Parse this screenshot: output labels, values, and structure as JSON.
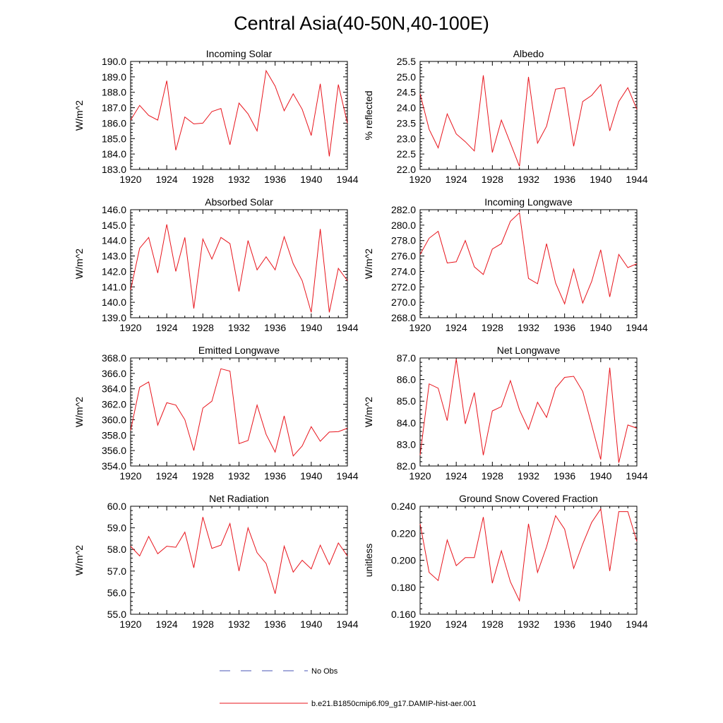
{
  "figure": {
    "title": "Central Asia(40-50N,40-100E)"
  },
  "legend": {
    "entries": [
      {
        "label": "No Obs",
        "color": "#4a56b5",
        "style": "dashed"
      },
      {
        "label": "b.e21.B1850cmip6.f09_g17.DAMIP-hist-aer.001",
        "color": "#e8141c",
        "style": "solid"
      }
    ]
  },
  "chart_data": [
    {
      "type": "line",
      "title": "Incoming Solar",
      "ylabel": "W/m^2",
      "xlim": [
        1920,
        1944
      ],
      "ylim": [
        183.0,
        190.0
      ],
      "x_ticks": [
        "1920",
        "1924",
        "1928",
        "1932",
        "1936",
        "1940",
        "1944"
      ],
      "y_ticks": [
        "183.0",
        "184.0",
        "185.0",
        "186.0",
        "187.0",
        "188.0",
        "189.0",
        "190.0"
      ],
      "series": [
        {
          "color": "#e8141c",
          "x": [
            1920,
            1921,
            1922,
            1923,
            1924,
            1925,
            1926,
            1927,
            1928,
            1929,
            1930,
            1931,
            1932,
            1933,
            1934,
            1935,
            1936,
            1937,
            1938,
            1939,
            1940,
            1941,
            1942,
            1943,
            1944
          ],
          "values": [
            186.2,
            187.15,
            186.5,
            186.2,
            188.75,
            184.25,
            186.4,
            185.95,
            186.0,
            186.75,
            186.95,
            184.6,
            187.3,
            186.6,
            185.5,
            189.4,
            188.4,
            186.8,
            187.9,
            186.9,
            185.2,
            188.55,
            183.85,
            188.5,
            186.0
          ]
        }
      ]
    },
    {
      "type": "line",
      "title": "Albedo",
      "ylabel": "% reflected",
      "xlim": [
        1920,
        1944
      ],
      "ylim": [
        22.0,
        25.5
      ],
      "x_ticks": [
        "1920",
        "1924",
        "1928",
        "1932",
        "1936",
        "1940",
        "1944"
      ],
      "y_ticks": [
        "22.0",
        "22.5",
        "23.0",
        "23.5",
        "24.0",
        "24.5",
        "25.0",
        "25.5"
      ],
      "series": [
        {
          "color": "#e8141c",
          "x": [
            1920,
            1921,
            1922,
            1923,
            1924,
            1925,
            1926,
            1927,
            1928,
            1929,
            1930,
            1931,
            1932,
            1933,
            1934,
            1935,
            1936,
            1937,
            1938,
            1939,
            1940,
            1941,
            1942,
            1943,
            1944
          ],
          "values": [
            24.45,
            23.3,
            22.7,
            23.8,
            23.15,
            22.9,
            22.6,
            25.05,
            22.55,
            23.6,
            22.85,
            22.1,
            25.0,
            22.85,
            23.4,
            24.6,
            24.65,
            22.75,
            24.2,
            24.4,
            24.75,
            23.25,
            24.2,
            24.65,
            23.95
          ]
        }
      ]
    },
    {
      "type": "line",
      "title": "Absorbed Solar",
      "ylabel": "W/m^2",
      "xlim": [
        1920,
        1944
      ],
      "ylim": [
        139.0,
        146.0
      ],
      "x_ticks": [
        "1920",
        "1924",
        "1928",
        "1932",
        "1936",
        "1940",
        "1944"
      ],
      "y_ticks": [
        "139.0",
        "140.0",
        "141.0",
        "142.0",
        "143.0",
        "144.0",
        "145.0",
        "146.0"
      ],
      "series": [
        {
          "color": "#e8141c",
          "x": [
            1920,
            1921,
            1922,
            1923,
            1924,
            1925,
            1926,
            1927,
            1928,
            1929,
            1930,
            1931,
            1932,
            1933,
            1934,
            1935,
            1936,
            1937,
            1938,
            1939,
            1940,
            1941,
            1942,
            1943,
            1944
          ],
          "values": [
            140.8,
            143.5,
            144.2,
            141.9,
            145.05,
            142.0,
            144.2,
            139.6,
            144.1,
            142.8,
            144.2,
            143.8,
            140.7,
            144.0,
            142.1,
            142.95,
            142.1,
            144.25,
            142.5,
            141.4,
            139.35,
            144.75,
            139.35,
            142.2,
            141.4
          ]
        }
      ]
    },
    {
      "type": "line",
      "title": "Incoming Longwave",
      "ylabel": "W/m^2",
      "xlim": [
        1920,
        1944
      ],
      "ylim": [
        268.0,
        282.0
      ],
      "x_ticks": [
        "1920",
        "1924",
        "1928",
        "1932",
        "1936",
        "1940",
        "1944"
      ],
      "y_ticks": [
        "268.0",
        "270.0",
        "272.0",
        "274.0",
        "276.0",
        "278.0",
        "280.0",
        "282.0"
      ],
      "series": [
        {
          "color": "#e8141c",
          "x": [
            1920,
            1921,
            1922,
            1923,
            1924,
            1925,
            1926,
            1927,
            1928,
            1929,
            1930,
            1931,
            1932,
            1933,
            1934,
            1935,
            1936,
            1937,
            1938,
            1939,
            1940,
            1941,
            1942,
            1943,
            1944
          ],
          "values": [
            276.2,
            278.3,
            279.2,
            275.1,
            275.25,
            278.0,
            274.6,
            273.6,
            276.9,
            277.6,
            280.5,
            281.6,
            273.1,
            272.4,
            277.6,
            272.5,
            269.8,
            274.3,
            269.9,
            272.7,
            276.8,
            270.7,
            276.2,
            274.5,
            275.0
          ]
        }
      ]
    },
    {
      "type": "line",
      "title": "Emitted Longwave",
      "ylabel": "W/m^2",
      "xlim": [
        1920,
        1944
      ],
      "ylim": [
        354.0,
        368.0
      ],
      "x_ticks": [
        "1920",
        "1924",
        "1928",
        "1932",
        "1936",
        "1940",
        "1944"
      ],
      "y_ticks": [
        "354.0",
        "356.0",
        "358.0",
        "360.0",
        "362.0",
        "364.0",
        "366.0",
        "368.0"
      ],
      "series": [
        {
          "color": "#e8141c",
          "x": [
            1920,
            1921,
            1922,
            1923,
            1924,
            1925,
            1926,
            1927,
            1928,
            1929,
            1930,
            1931,
            1932,
            1933,
            1934,
            1935,
            1936,
            1937,
            1938,
            1939,
            1940,
            1941,
            1942,
            1943,
            1944
          ],
          "values": [
            358.6,
            364.2,
            364.9,
            359.3,
            362.2,
            361.9,
            360.0,
            356.0,
            361.5,
            362.4,
            366.6,
            366.3,
            356.9,
            357.3,
            361.9,
            358.1,
            355.8,
            360.5,
            355.3,
            356.6,
            359.1,
            357.2,
            358.4,
            358.45,
            358.9
          ]
        }
      ]
    },
    {
      "type": "line",
      "title": "Net Longwave",
      "ylabel": "W/m^2",
      "xlim": [
        1920,
        1944
      ],
      "ylim": [
        82.0,
        87.0
      ],
      "x_ticks": [
        "1920",
        "1924",
        "1928",
        "1932",
        "1936",
        "1940",
        "1944"
      ],
      "y_ticks": [
        "82.0",
        "83.0",
        "84.0",
        "85.0",
        "86.0",
        "87.0"
      ],
      "series": [
        {
          "color": "#e8141c",
          "x": [
            1920,
            1921,
            1922,
            1923,
            1924,
            1925,
            1926,
            1927,
            1928,
            1929,
            1930,
            1931,
            1932,
            1933,
            1934,
            1935,
            1936,
            1937,
            1938,
            1939,
            1940,
            1941,
            1942,
            1943,
            1944
          ],
          "values": [
            82.5,
            85.8,
            85.6,
            84.1,
            86.95,
            83.95,
            85.4,
            82.5,
            84.55,
            84.75,
            85.95,
            84.6,
            83.7,
            84.95,
            84.25,
            85.6,
            86.1,
            86.15,
            85.45,
            83.9,
            82.3,
            86.55,
            82.15,
            83.9,
            83.75
          ]
        }
      ]
    },
    {
      "type": "line",
      "title": "Net Radiation",
      "ylabel": "W/m^2",
      "xlim": [
        1920,
        1944
      ],
      "ylim": [
        55.0,
        60.0
      ],
      "x_ticks": [
        "1920",
        "1924",
        "1928",
        "1932",
        "1936",
        "1940",
        "1944"
      ],
      "y_ticks": [
        "55.0",
        "56.0",
        "57.0",
        "58.0",
        "59.0",
        "60.0"
      ],
      "series": [
        {
          "color": "#e8141c",
          "x": [
            1920,
            1921,
            1922,
            1923,
            1924,
            1925,
            1926,
            1927,
            1928,
            1929,
            1930,
            1931,
            1932,
            1933,
            1934,
            1935,
            1936,
            1937,
            1938,
            1939,
            1940,
            1941,
            1942,
            1943,
            1944
          ],
          "values": [
            58.15,
            57.7,
            58.6,
            57.8,
            58.15,
            58.1,
            58.8,
            57.15,
            59.5,
            58.05,
            58.2,
            59.2,
            57.0,
            59.0,
            57.85,
            57.35,
            55.95,
            58.15,
            56.95,
            57.5,
            57.1,
            58.2,
            57.3,
            58.3,
            57.7
          ]
        }
      ]
    },
    {
      "type": "line",
      "title": "Ground Snow Covered Fraction",
      "ylabel": "unitless",
      "xlim": [
        1920,
        1944
      ],
      "ylim": [
        0.16,
        0.24
      ],
      "x_ticks": [
        "1920",
        "1924",
        "1928",
        "1932",
        "1936",
        "1940",
        "1944"
      ],
      "y_ticks": [
        "0.160",
        "0.180",
        "0.200",
        "0.220",
        "0.240"
      ],
      "series": [
        {
          "color": "#e8141c",
          "x": [
            1920,
            1921,
            1922,
            1923,
            1924,
            1925,
            1926,
            1927,
            1928,
            1929,
            1930,
            1931,
            1932,
            1933,
            1934,
            1935,
            1936,
            1937,
            1938,
            1939,
            1940,
            1941,
            1942,
            1943,
            1944
          ],
          "values": [
            0.227,
            0.191,
            0.185,
            0.215,
            0.196,
            0.202,
            0.202,
            0.232,
            0.183,
            0.207,
            0.184,
            0.17,
            0.227,
            0.191,
            0.21,
            0.233,
            0.223,
            0.194,
            0.212,
            0.228,
            0.238,
            0.192,
            0.236,
            0.236,
            0.214
          ]
        }
      ]
    }
  ]
}
